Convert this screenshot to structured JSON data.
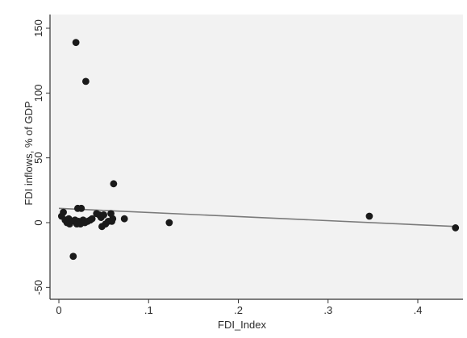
{
  "chart_data": {
    "type": "scatter",
    "title": "",
    "xlabel": "FDI_Index",
    "ylabel": "FDI inflows, % of GDP",
    "xlim": [
      0,
      0.45
    ],
    "ylim": [
      -50,
      150
    ],
    "x_ticks": [
      0,
      0.1,
      0.2,
      0.3,
      0.4
    ],
    "x_tick_labels": [
      "0",
      ".1",
      ".2",
      ".3",
      ".4"
    ],
    "y_ticks": [
      -50,
      0,
      50,
      100,
      150
    ],
    "y_tick_labels": [
      "-50",
      "0",
      "50",
      "100",
      "150"
    ],
    "grid": false,
    "colors": {
      "plot_bg": "#f2f2f2",
      "points": "#1a1a1a",
      "fit_line": "#7a7a7a",
      "axis": "#333333"
    },
    "series": [
      {
        "type": "scatter",
        "points": [
          [
            0.003,
            5
          ],
          [
            0.005,
            8
          ],
          [
            0.007,
            2
          ],
          [
            0.009,
            0
          ],
          [
            0.011,
            3
          ],
          [
            0.012,
            -1
          ],
          [
            0.014,
            1
          ],
          [
            0.016,
            -26
          ],
          [
            0.018,
            2
          ],
          [
            0.019,
            139
          ],
          [
            0.02,
            -1
          ],
          [
            0.021,
            11
          ],
          [
            0.022,
            1
          ],
          [
            0.023,
            0
          ],
          [
            0.024,
            -1
          ],
          [
            0.025,
            11
          ],
          [
            0.027,
            2
          ],
          [
            0.029,
            0
          ],
          [
            0.03,
            109
          ],
          [
            0.032,
            1
          ],
          [
            0.035,
            2
          ],
          [
            0.037,
            3
          ],
          [
            0.042,
            7
          ],
          [
            0.045,
            6
          ],
          [
            0.047,
            4
          ],
          [
            0.048,
            -3
          ],
          [
            0.05,
            6
          ],
          [
            0.052,
            -1
          ],
          [
            0.055,
            1
          ],
          [
            0.058,
            7
          ],
          [
            0.059,
            1
          ],
          [
            0.06,
            3
          ],
          [
            0.061,
            30
          ],
          [
            0.073,
            3
          ],
          [
            0.123,
            0
          ],
          [
            0.346,
            5
          ],
          [
            0.442,
            -4
          ]
        ]
      },
      {
        "type": "line",
        "points": [
          [
            0,
            11
          ],
          [
            0.443,
            -3
          ]
        ]
      }
    ]
  }
}
